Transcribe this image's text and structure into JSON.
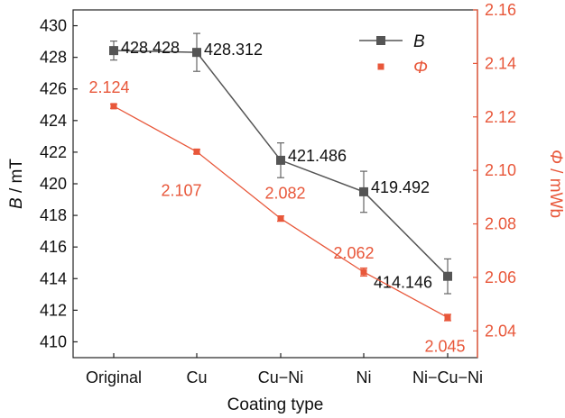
{
  "chart_data": {
    "type": "line",
    "categories": [
      "Original",
      "Cu",
      "Cu−Ni",
      "Ni",
      "Ni−Cu−Ni"
    ],
    "xlabel": "Coating type",
    "y_left": {
      "label_italic": "B",
      "label_rest": " / mT",
      "ylim": [
        409,
        431
      ],
      "ticks": [
        410,
        412,
        414,
        416,
        418,
        420,
        422,
        424,
        426,
        428,
        430
      ]
    },
    "y_right": {
      "label_italic": "Φ",
      "label_rest": " / mWb",
      "ylim": [
        2.03,
        2.16
      ],
      "ticks": [
        "2.04",
        "2.06",
        "2.08",
        "2.10",
        "2.12",
        "2.14",
        "2.16"
      ],
      "color": "#e8573a"
    },
    "series": [
      {
        "name": "B",
        "axis": "left",
        "color": "#555555",
        "values": [
          428.428,
          428.312,
          421.486,
          419.492,
          414.146
        ],
        "errors": [
          0.6,
          1.2,
          1.1,
          1.3,
          1.1
        ],
        "labels": [
          "428.428",
          "428.312",
          "421.486",
          "419.492",
          "414.146"
        ]
      },
      {
        "name": "Φ",
        "axis": "right",
        "color": "#e8573a",
        "values": [
          2.124,
          2.107,
          2.082,
          2.062,
          2.045
        ],
        "errors": [
          0.0008,
          0.0008,
          0.001,
          0.0015,
          0.0012
        ],
        "labels": [
          "2.124",
          "2.107",
          "2.082",
          "2.062",
          "2.045"
        ]
      }
    ],
    "legend": {
      "placement": "top-right",
      "entries": [
        "B",
        "Φ"
      ]
    },
    "grid": false
  }
}
